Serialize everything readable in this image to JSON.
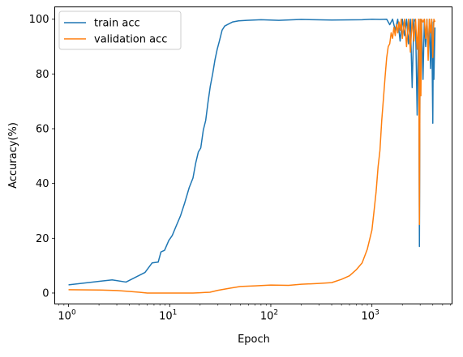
{
  "chart_data": {
    "type": "line",
    "xlabel": "Epoch",
    "ylabel": "Accuracy(%)",
    "xscale": "log",
    "xlim": [
      0.73,
      6200
    ],
    "ylim": [
      -4,
      104.5
    ],
    "grid": false,
    "legend_position": "top-left",
    "x_ticks": [
      {
        "value": 1,
        "base": "10",
        "exp": "0"
      },
      {
        "value": 10,
        "base": "10",
        "exp": "1"
      },
      {
        "value": 100,
        "base": "10",
        "exp": "2"
      },
      {
        "value": 1000,
        "base": "10",
        "exp": "3"
      }
    ],
    "y_ticks": [
      0,
      20,
      40,
      60,
      80,
      100
    ],
    "series": [
      {
        "name": "train acc",
        "color": "#1f77b4",
        "x": [
          1,
          2.7,
          3.7,
          5.7,
          6.7,
          7.7,
          8.2,
          8.9,
          9.8,
          10.6,
          11.6,
          12.8,
          14.1,
          15.6,
          17,
          18.1,
          19.2,
          20.3,
          21.5,
          22.7,
          23.9,
          25.2,
          26.6,
          28,
          29.5,
          31,
          33,
          35,
          38,
          42,
          48,
          58,
          80,
          120,
          200,
          400,
          800,
          1000,
          1200,
          1400,
          1500,
          1600,
          1700,
          1800,
          1900,
          2000,
          2100,
          2200,
          2300,
          2400,
          2500,
          2600,
          2700,
          2800,
          2900,
          2950,
          3000,
          3100,
          3200,
          3300,
          3400,
          3500,
          3600,
          3700,
          3800,
          3900,
          4000,
          4050,
          4100,
          4200
        ],
        "y": [
          3,
          4.8,
          4,
          7.5,
          11,
          11.3,
          15,
          15.6,
          19.2,
          21,
          24.5,
          28.2,
          33,
          38.5,
          42,
          47.5,
          51.5,
          53,
          59.5,
          63,
          69.5,
          75.5,
          80,
          85,
          89,
          92,
          96,
          97.5,
          98.2,
          99,
          99.4,
          99.6,
          99.8,
          99.6,
          99.9,
          99.7,
          99.8,
          100,
          99.9,
          100,
          98,
          100,
          96,
          100,
          92,
          100,
          94,
          100,
          91,
          100,
          75,
          100,
          99,
          65,
          100,
          17,
          100,
          99,
          78,
          100,
          90,
          100,
          88,
          100,
          82,
          100,
          62,
          99,
          78,
          97
        ]
      },
      {
        "name": "validation acc",
        "color": "#ff7f0e",
        "x": [
          1,
          2,
          3,
          4,
          5,
          6,
          8,
          10,
          13,
          17,
          20,
          25,
          30,
          40,
          50,
          70,
          100,
          150,
          200,
          300,
          400,
          500,
          600,
          700,
          800,
          900,
          1000,
          1050,
          1100,
          1150,
          1200,
          1250,
          1300,
          1350,
          1400,
          1450,
          1500,
          1550,
          1600,
          1650,
          1700,
          1750,
          1800,
          1850,
          1900,
          1950,
          2000,
          2100,
          2200,
          2300,
          2400,
          2500,
          2600,
          2700,
          2800,
          2900,
          2950,
          3000,
          3050,
          3100,
          3200,
          3300,
          3400,
          3500,
          3600,
          3700,
          3800,
          3900,
          4000,
          4100,
          4200
        ],
        "y": [
          1.2,
          1.1,
          0.9,
          0.6,
          0.3,
          0,
          0,
          0,
          0,
          0,
          0.1,
          0.3,
          1,
          1.8,
          2.4,
          2.6,
          2.9,
          2.8,
          3.2,
          3.5,
          3.8,
          5,
          6.3,
          8.5,
          11,
          16,
          23,
          30,
          37,
          46,
          52,
          63,
          71,
          79,
          86,
          90,
          91,
          95,
          93,
          97,
          94,
          98,
          95,
          99,
          96,
          100,
          93,
          100,
          90,
          100,
          88,
          100,
          92,
          100,
          89,
          100,
          25,
          100,
          72,
          100,
          99,
          100,
          93,
          100,
          85,
          100,
          95,
          100,
          86,
          100,
          99
        ]
      }
    ]
  }
}
